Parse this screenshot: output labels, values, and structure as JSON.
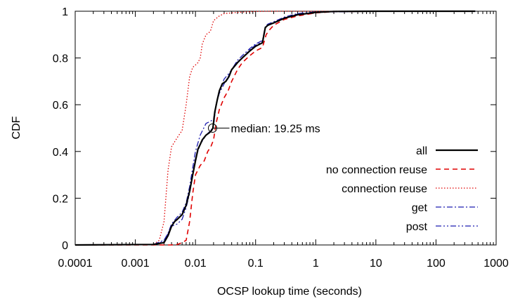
{
  "chart_data": {
    "type": "line",
    "title": "",
    "xlabel": "OCSP lookup time (seconds)",
    "ylabel": "CDF",
    "xscale": "log",
    "xlim": [
      0.0001,
      1000
    ],
    "ylim": [
      0,
      1
    ],
    "grid": false,
    "legend_position": "bottom-right",
    "x_ticks": [
      {
        "value": 0.0001,
        "label": "0.0001"
      },
      {
        "value": 0.001,
        "label": "0.001"
      },
      {
        "value": 0.01,
        "label": "0.01"
      },
      {
        "value": 0.1,
        "label": "0.1"
      },
      {
        "value": 1,
        "label": "1"
      },
      {
        "value": 10,
        "label": "10"
      },
      {
        "value": 100,
        "label": "100"
      },
      {
        "value": 1000,
        "label": "1000"
      }
    ],
    "y_ticks": [
      {
        "value": 0,
        "label": "0"
      },
      {
        "value": 0.2,
        "label": "0.2"
      },
      {
        "value": 0.4,
        "label": "0.4"
      },
      {
        "value": 0.6,
        "label": "0.6"
      },
      {
        "value": 0.8,
        "label": "0.8"
      },
      {
        "value": 1,
        "label": "1"
      }
    ],
    "series": [
      {
        "name": "all",
        "color": "#000000",
        "style": "solid",
        "x": [
          0.0001,
          0.002,
          0.003,
          0.0035,
          0.004,
          0.0045,
          0.005,
          0.006,
          0.007,
          0.008,
          0.009,
          0.01,
          0.011,
          0.012,
          0.013,
          0.015,
          0.017,
          0.0185,
          0.0195,
          0.021,
          0.023,
          0.025,
          0.028,
          0.032,
          0.036,
          0.04,
          0.05,
          0.06,
          0.08,
          0.1,
          0.13,
          0.145,
          0.16,
          0.2,
          0.3,
          0.5,
          1,
          2,
          10,
          100,
          450
        ],
        "y": [
          0,
          0.002,
          0.01,
          0.04,
          0.08,
          0.1,
          0.11,
          0.13,
          0.17,
          0.23,
          0.3,
          0.36,
          0.41,
          0.43,
          0.45,
          0.47,
          0.48,
          0.49,
          0.5,
          0.57,
          0.62,
          0.66,
          0.69,
          0.7,
          0.72,
          0.75,
          0.78,
          0.8,
          0.83,
          0.85,
          0.865,
          0.93,
          0.94,
          0.95,
          0.97,
          0.985,
          0.995,
          0.999,
          1,
          1,
          1
        ]
      },
      {
        "name": "no connection reuse",
        "color": "#e00000",
        "style": "dashed",
        "x": [
          0.0001,
          0.004,
          0.005,
          0.006,
          0.007,
          0.008,
          0.009,
          0.01,
          0.012,
          0.014,
          0.016,
          0.018,
          0.02,
          0.022,
          0.025,
          0.03,
          0.035,
          0.04,
          0.05,
          0.06,
          0.08,
          0.1,
          0.13,
          0.15,
          0.17,
          0.2,
          0.3,
          0.5,
          1,
          2,
          10,
          100,
          450
        ],
        "y": [
          0,
          0,
          0.002,
          0.01,
          0.02,
          0.1,
          0.22,
          0.3,
          0.34,
          0.36,
          0.4,
          0.42,
          0.45,
          0.52,
          0.58,
          0.63,
          0.66,
          0.7,
          0.75,
          0.78,
          0.81,
          0.83,
          0.845,
          0.9,
          0.92,
          0.94,
          0.965,
          0.98,
          0.993,
          0.998,
          1,
          1,
          1
        ]
      },
      {
        "name": "connection reuse",
        "color": "#e00000",
        "style": "dotted",
        "x": [
          0.0001,
          0.002,
          0.0025,
          0.003,
          0.0035,
          0.004,
          0.005,
          0.006,
          0.007,
          0.008,
          0.009,
          0.01,
          0.011,
          0.012,
          0.013,
          0.015,
          0.017,
          0.018,
          0.02,
          0.025,
          0.03,
          0.05,
          0.08,
          0.1,
          0.2,
          0.5,
          1,
          10,
          450
        ],
        "y": [
          0,
          0.002,
          0.02,
          0.1,
          0.32,
          0.42,
          0.46,
          0.49,
          0.6,
          0.72,
          0.76,
          0.77,
          0.78,
          0.8,
          0.86,
          0.9,
          0.91,
          0.92,
          0.96,
          0.98,
          0.99,
          0.995,
          0.998,
          0.999,
          1,
          1,
          1,
          1,
          1
        ]
      },
      {
        "name": "get",
        "color": "#1c1cb0",
        "style": "dashdot",
        "x": [
          0.0001,
          0.002,
          0.003,
          0.0035,
          0.004,
          0.005,
          0.006,
          0.007,
          0.008,
          0.009,
          0.01,
          0.012,
          0.015,
          0.018,
          0.02,
          0.022,
          0.025,
          0.03,
          0.035,
          0.04,
          0.05,
          0.06,
          0.08,
          0.1,
          0.13,
          0.145,
          0.16,
          0.2,
          0.3,
          0.5,
          1,
          10,
          450
        ],
        "y": [
          0,
          0.002,
          0.02,
          0.05,
          0.09,
          0.12,
          0.14,
          0.18,
          0.25,
          0.33,
          0.4,
          0.47,
          0.52,
          0.53,
          0.54,
          0.6,
          0.65,
          0.69,
          0.72,
          0.75,
          0.79,
          0.81,
          0.84,
          0.86,
          0.875,
          0.935,
          0.945,
          0.955,
          0.975,
          0.99,
          0.997,
          1,
          1
        ]
      },
      {
        "name": "post",
        "color": "#1c1cb0",
        "style": "dashdotdot",
        "x": [
          0.0001,
          0.002,
          0.003,
          0.0035,
          0.004,
          0.005,
          0.006,
          0.007,
          0.008,
          0.009,
          0.01,
          0.012,
          0.015,
          0.018,
          0.02,
          0.022,
          0.025,
          0.03,
          0.035,
          0.04,
          0.05,
          0.06,
          0.08,
          0.1,
          0.13,
          0.145,
          0.16,
          0.2,
          0.3,
          0.5,
          1,
          10,
          450
        ],
        "y": [
          0,
          0.002,
          0.015,
          0.05,
          0.08,
          0.09,
          0.11,
          0.16,
          0.22,
          0.3,
          0.37,
          0.43,
          0.47,
          0.49,
          0.51,
          0.6,
          0.66,
          0.71,
          0.73,
          0.75,
          0.785,
          0.8,
          0.835,
          0.855,
          0.87,
          0.93,
          0.94,
          0.952,
          0.972,
          0.988,
          0.996,
          1,
          1
        ]
      }
    ],
    "annotations": [
      {
        "text": "median: 19.25 ms",
        "x": 0.01925,
        "y": 0.5
      }
    ]
  }
}
